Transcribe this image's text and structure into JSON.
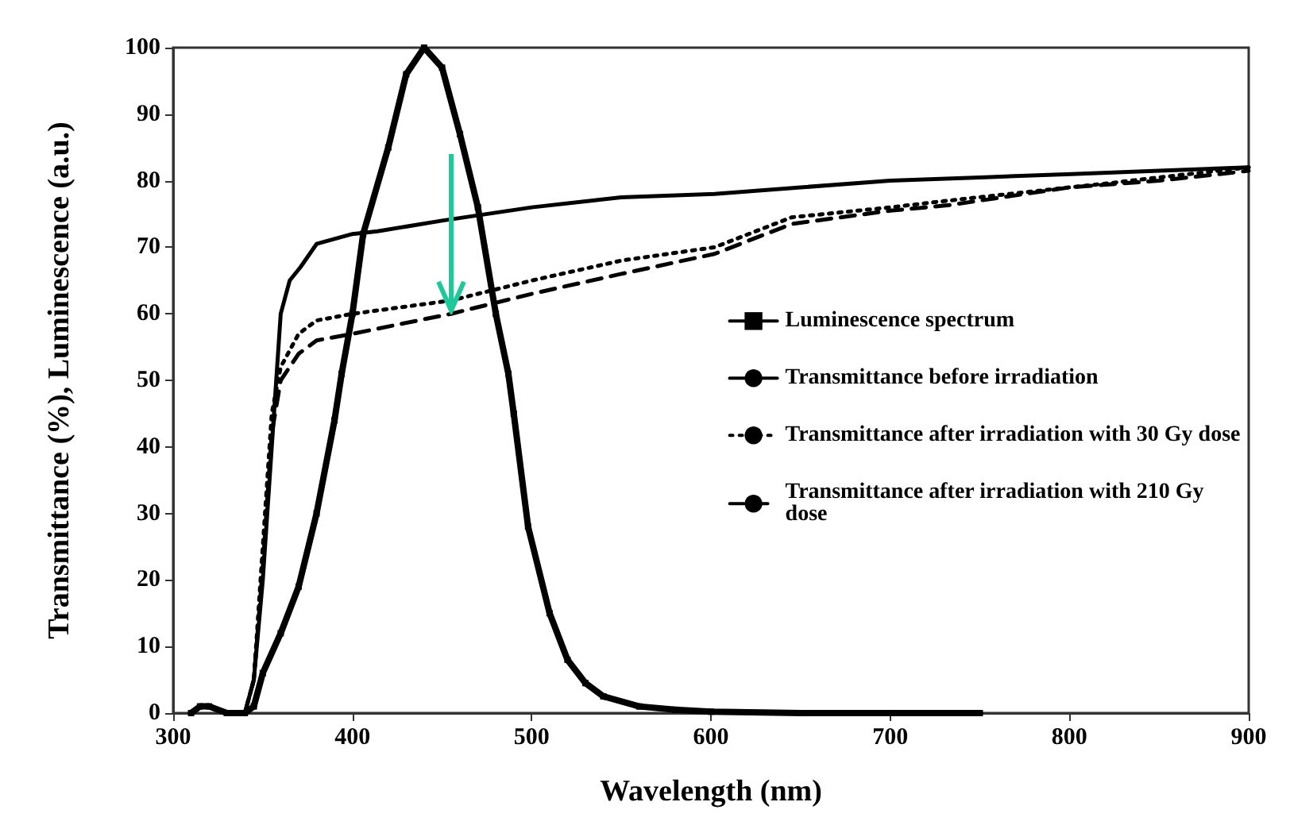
{
  "chart_data": {
    "type": "line",
    "xlabel": "Wavelength (nm)",
    "ylabel": "Transmittance (%), Luminescence (a.u.)",
    "xlim": [
      300,
      900
    ],
    "xticks": [
      300,
      400,
      500,
      600,
      700,
      800,
      900
    ],
    "ylim": [
      0,
      100
    ],
    "yticks": [
      0,
      10,
      20,
      30,
      40,
      50,
      60,
      70,
      80,
      90,
      100
    ],
    "grid": false,
    "legend": "right",
    "series": [
      {
        "name": "Luminescence spectrum",
        "color": "#000000",
        "marker": "square",
        "line_style": "solid",
        "x": [
          310,
          315,
          320,
          330,
          340,
          345,
          350,
          360,
          370,
          380,
          390,
          394,
          400,
          406,
          420,
          430,
          440,
          450,
          460,
          470,
          480,
          487,
          490,
          498,
          510,
          520,
          530,
          540,
          560,
          580,
          600,
          650,
          750
        ],
        "values": [
          0,
          1,
          1,
          0,
          0,
          1,
          6,
          12,
          19,
          30,
          44,
          51,
          60,
          72,
          85,
          96,
          100,
          97,
          87,
          76,
          60,
          51,
          45,
          28,
          15,
          8,
          4.5,
          2.5,
          1,
          0.5,
          0.2,
          0,
          0
        ]
      },
      {
        "name": "Transmittance before irradiation",
        "color": "#000000",
        "marker": "none",
        "line_style": "solid",
        "x": [
          340,
          345,
          350,
          355,
          360,
          365,
          371,
          380,
          400,
          414,
          450,
          500,
          550,
          602,
          650,
          700,
          750,
          801,
          850,
          900
        ],
        "values": [
          0,
          5,
          20,
          40,
          60,
          65,
          67,
          70.5,
          72,
          72.4,
          74,
          76,
          77.5,
          78,
          79,
          80,
          80.5,
          81,
          81.5,
          82
        ]
      },
      {
        "name": "Transmittance after irradiation with 30 Gy dose",
        "color": "#000000",
        "marker": "none",
        "line_style": "dotted",
        "x": [
          340,
          345,
          350,
          355,
          360,
          370,
          380,
          400,
          455,
          500,
          550,
          602,
          645,
          700,
          732,
          800,
          818,
          850,
          900
        ],
        "values": [
          0,
          5,
          25,
          45,
          52,
          57,
          59,
          60,
          62,
          65,
          68,
          70,
          74.5,
          76,
          77,
          79,
          79.5,
          80.5,
          82
        ]
      },
      {
        "name": "Transmittance after irradiation with 210 Gy dose",
        "color": "#000000",
        "marker": "none",
        "line_style": "dashed",
        "x": [
          340,
          345,
          350,
          355,
          360,
          370,
          380,
          400,
          455,
          500,
          550,
          602,
          645,
          700,
          732,
          800,
          850,
          900
        ],
        "values": [
          0,
          5,
          22,
          42,
          50,
          54,
          56,
          57,
          60,
          63,
          66,
          69,
          73.5,
          75.5,
          76.3,
          79,
          80,
          81.5
        ]
      }
    ]
  }
}
